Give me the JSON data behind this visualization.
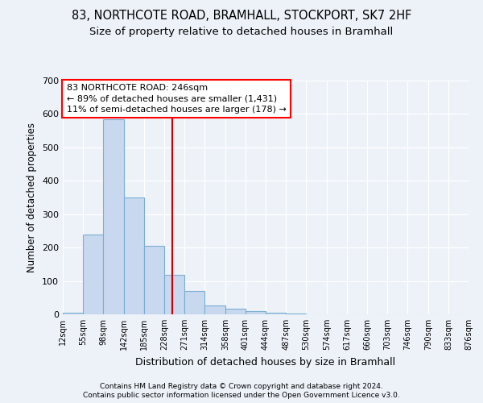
{
  "title1": "83, NORTHCOTE ROAD, BRAMHALL, STOCKPORT, SK7 2HF",
  "title2": "Size of property relative to detached houses in Bramhall",
  "xlabel": "Distribution of detached houses by size in Bramhall",
  "ylabel": "Number of detached properties",
  "footnote1": "Contains HM Land Registry data © Crown copyright and database right 2024.",
  "footnote2": "Contains public sector information licensed under the Open Government Licence v3.0.",
  "annotation_line1": "83 NORTHCOTE ROAD: 246sqm",
  "annotation_line2": "← 89% of detached houses are smaller (1,431)",
  "annotation_line3": "11% of semi-detached houses are larger (178) →",
  "bar_color": "#c8d8ee",
  "bar_edge_color": "#7aaed4",
  "redline_color": "#cc0000",
  "redline_x": 246,
  "bin_edges": [
    12,
    55,
    98,
    142,
    185,
    228,
    271,
    314,
    358,
    401,
    444,
    487,
    530,
    574,
    617,
    660,
    703,
    746,
    790,
    833,
    876
  ],
  "bar_heights": [
    5,
    238,
    585,
    350,
    205,
    118,
    70,
    27,
    18,
    10,
    5,
    3,
    0,
    0,
    0,
    0,
    0,
    0,
    0,
    0
  ],
  "ylim": [
    0,
    700
  ],
  "yticks": [
    0,
    100,
    200,
    300,
    400,
    500,
    600,
    700
  ],
  "background_color": "#edf2f9",
  "plot_bg_color": "#edf2f9",
  "grid_color": "#ffffff",
  "title1_fontsize": 10.5,
  "title2_fontsize": 9.5,
  "ylabel_fontsize": 8.5,
  "xlabel_fontsize": 9,
  "footnote_fontsize": 6.5,
  "ann_fontsize": 8
}
